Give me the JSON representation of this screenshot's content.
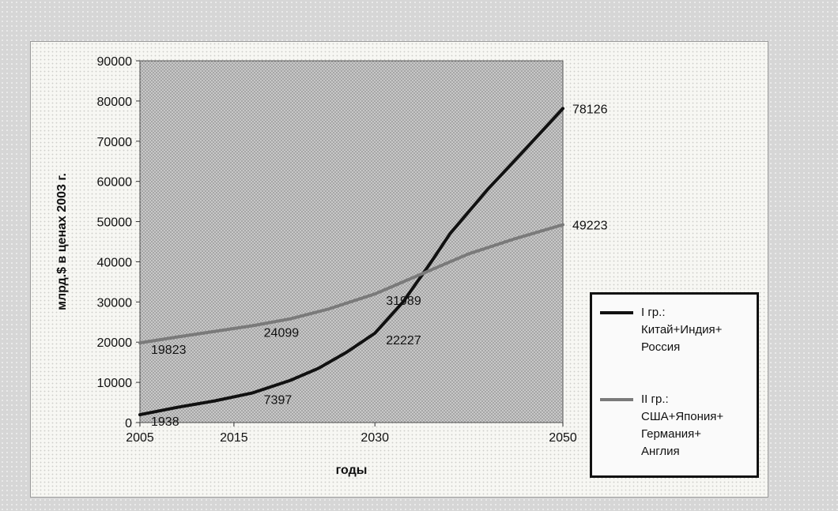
{
  "chart_data": {
    "type": "line",
    "xlabel": "годы",
    "ylabel": "млрд.$ в ценах 2003 г.",
    "x_ticks": [
      "2005",
      "2015",
      "2030",
      "2050"
    ],
    "y_ticks": [
      "0",
      "10000",
      "20000",
      "30000",
      "40000",
      "50000",
      "60000",
      "70000",
      "80000",
      "90000"
    ],
    "xlim": [
      2005,
      2050
    ],
    "ylim": [
      0,
      90000
    ],
    "grid": false,
    "legend_position": "right",
    "series": [
      {
        "name": "I гр.: Китай+Индия+Россия",
        "color": "#111111",
        "points": [
          [
            2005,
            1938
          ],
          [
            2009,
            3800
          ],
          [
            2013,
            5400
          ],
          [
            2017,
            7397
          ],
          [
            2021,
            10500
          ],
          [
            2024,
            13500
          ],
          [
            2027,
            17500
          ],
          [
            2030,
            22227
          ],
          [
            2033,
            30000
          ],
          [
            2036,
            40000
          ],
          [
            2038,
            47000
          ],
          [
            2042,
            58000
          ],
          [
            2046,
            68000
          ],
          [
            2050,
            78126
          ]
        ],
        "labels": [
          {
            "x": 2005,
            "y": 1938,
            "text": "1938"
          },
          {
            "x": 2017,
            "y": 7397,
            "text": "7397"
          },
          {
            "x": 2030,
            "y": 22227,
            "text": "22227"
          },
          {
            "x": 2050,
            "y": 78126,
            "text": "78126"
          }
        ]
      },
      {
        "name": "II гр.: США+Япония+Германия+Англия",
        "color": "#7a7a7a",
        "points": [
          [
            2005,
            19823
          ],
          [
            2009,
            21300
          ],
          [
            2013,
            22700
          ],
          [
            2017,
            24099
          ],
          [
            2021,
            25800
          ],
          [
            2025,
            28200
          ],
          [
            2030,
            31989
          ],
          [
            2035,
            37000
          ],
          [
            2040,
            42000
          ],
          [
            2045,
            45800
          ],
          [
            2050,
            49223
          ]
        ],
        "labels": [
          {
            "x": 2005,
            "y": 19823,
            "text": "19823"
          },
          {
            "x": 2017,
            "y": 24099,
            "text": "24099"
          },
          {
            "x": 2030,
            "y": 31989,
            "text": "31989"
          },
          {
            "x": 2050,
            "y": 49223,
            "text": "49223"
          }
        ]
      }
    ],
    "legend": [
      {
        "text": "I гр.:\nКитай+Индия+\nРоссия",
        "color": "#111111"
      },
      {
        "text": "II гр.:\nСША+Япония+\nГермания+\nАнглия",
        "color": "#7a7a7a"
      }
    ]
  }
}
